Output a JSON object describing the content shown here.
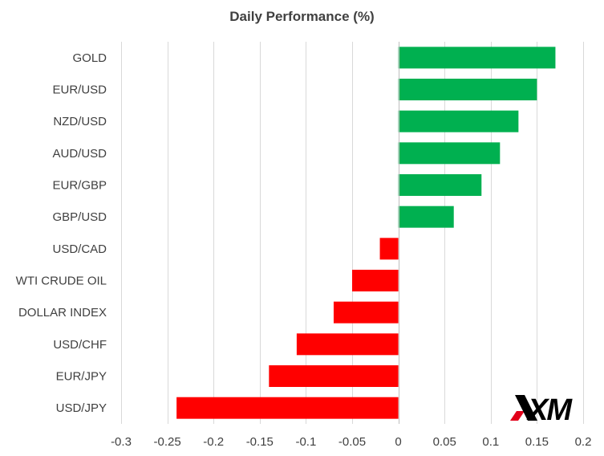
{
  "chart_data": {
    "type": "bar",
    "orientation": "horizontal",
    "title": "Daily Performance  (%)",
    "xlabel": "",
    "ylabel": "",
    "categories": [
      "GOLD",
      "EUR/USD",
      "NZD/USD",
      "AUD/USD",
      "EUR/GBP",
      "GBP/USD",
      "USD/CAD",
      "WTI CRUDE OIL",
      "DOLLAR INDEX",
      "USD/CHF",
      "EUR/JPY",
      "USD/JPY"
    ],
    "values": [
      0.17,
      0.15,
      0.13,
      0.11,
      0.09,
      0.06,
      -0.02,
      -0.05,
      -0.07,
      -0.11,
      -0.14,
      -0.24
    ],
    "xlim": [
      -0.3,
      0.2
    ],
    "xticks": [
      "-0.3",
      "-0.25",
      "-0.2",
      "-0.15",
      "-0.1",
      "-0.05",
      "0",
      "0.05",
      "0.1",
      "0.15",
      "0.2"
    ],
    "grid": "vertical",
    "legend": "none",
    "colors": {
      "positive": "#00b050",
      "negative": "#ff0000",
      "grid": "#d9d9d9",
      "axis": "#bfbfbf",
      "text": "#404040"
    }
  },
  "logo": {
    "text": "XM",
    "colors": {
      "primary": "#000000",
      "accent": "#e2001a"
    }
  }
}
